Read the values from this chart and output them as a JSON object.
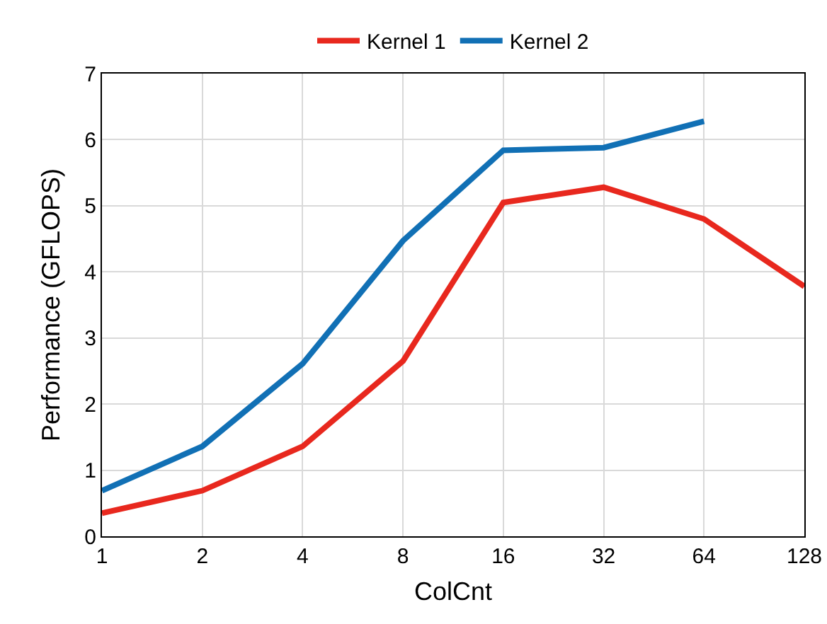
{
  "chart_data": {
    "type": "line",
    "xlabel": "ColCnt",
    "ylabel": "Performance (GFLOPS)",
    "categories": [
      "1",
      "2",
      "4",
      "8",
      "16",
      "32",
      "64",
      "128"
    ],
    "series": [
      {
        "name": "Kernel 1",
        "color": "#e8281e",
        "values": [
          0.35,
          0.69,
          1.36,
          2.65,
          5.05,
          5.28,
          4.8,
          3.78
        ]
      },
      {
        "name": "Kernel 2",
        "color": "#1170b5",
        "values": [
          0.69,
          1.36,
          2.61,
          4.47,
          5.84,
          5.88,
          6.28,
          null
        ]
      }
    ],
    "ylim": [
      0,
      7
    ],
    "yticks": [
      0,
      1,
      2,
      3,
      4,
      5,
      6,
      7
    ],
    "grid": true,
    "legend": "top",
    "marker": "none",
    "line_style": "solid"
  }
}
